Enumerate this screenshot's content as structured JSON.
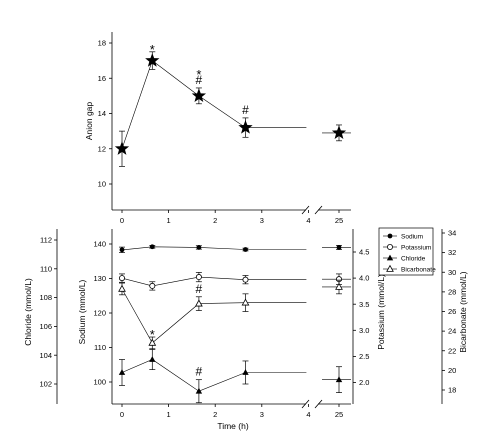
{
  "chart_data": [
    {
      "type": "line",
      "title": "",
      "xlabel": "",
      "ylabel": "Anion gap",
      "x_break_between": [
        4,
        25
      ],
      "xticks": [
        "0",
        "1",
        "2",
        "3",
        "4",
        "25"
      ],
      "yticks": [
        "10",
        "12",
        "14",
        "16",
        "18"
      ],
      "ylim": [
        9,
        19
      ],
      "grid": false,
      "series": [
        {
          "marker": "star",
          "x": [
            0,
            0.65,
            1.65,
            2.65,
            25
          ],
          "values": [
            12.0,
            17.0,
            15.0,
            13.2,
            12.9
          ],
          "errors": [
            1.0,
            0.5,
            0.45,
            0.55,
            0.45
          ],
          "annotations": [
            "",
            "*",
            "*\n#",
            "#",
            ""
          ]
        }
      ]
    },
    {
      "type": "line",
      "title": "",
      "xlabel": "Time (h)",
      "x_break_between": [
        4,
        25
      ],
      "xticks": [
        "0",
        "1",
        "2",
        "3",
        "4",
        "25"
      ],
      "grid": false,
      "legend": "top-right",
      "axes": {
        "chloride": {
          "label": "Chloride (mmol/L)",
          "ticks": [
            "102",
            "104",
            "106",
            "108",
            "110",
            "112"
          ],
          "range": [
            100.5,
            112.5
          ]
        },
        "sodium": {
          "label": "Sodium (mmol/L)",
          "ticks": [
            "100",
            "110",
            "120",
            "130",
            "140"
          ],
          "range": [
            96,
            144
          ]
        },
        "potassium": {
          "label": "Potassium (mmol/L)",
          "ticks": [
            "2.0",
            "2.5",
            "3.0",
            "3.5",
            "4.0",
            "4.5"
          ],
          "range": [
            1.75,
            4.65
          ]
        },
        "bicarbonate": {
          "label": "Bicarbonate (mmol/L)",
          "ticks": [
            "18",
            "20",
            "22",
            "24",
            "26",
            "28",
            "30",
            "32",
            "34"
          ],
          "range": [
            17,
            35
          ]
        }
      },
      "series": [
        {
          "name": "Sodium",
          "marker": "filled-circle",
          "axis": "sodium",
          "x": [
            0,
            0.65,
            1.65,
            2.65,
            25
          ],
          "values": [
            138.3,
            139.2,
            139.0,
            138.4,
            139.0
          ],
          "errors": [
            0.8,
            0.4,
            0.5,
            0.4,
            0.6
          ],
          "annotations": [
            "",
            "",
            "",
            "",
            ""
          ]
        },
        {
          "name": "Potassium",
          "marker": "open-circle",
          "axis": "potassium",
          "x": [
            0,
            0.65,
            1.65,
            2.65,
            25
          ],
          "values": [
            4.0,
            3.85,
            4.02,
            3.97,
            3.98
          ],
          "errors": [
            0.08,
            0.08,
            0.09,
            0.08,
            0.1
          ],
          "annotations": [
            "",
            "",
            "",
            "",
            ""
          ]
        },
        {
          "name": "Chloride",
          "marker": "filled-triangle",
          "axis": "chloride",
          "x": [
            0,
            0.65,
            1.65,
            2.65,
            25
          ],
          "values": [
            102.8,
            103.7,
            101.5,
            102.8,
            102.3
          ],
          "errors": [
            0.9,
            0.7,
            0.8,
            0.8,
            0.9
          ],
          "annotations": [
            "",
            "",
            "#",
            "",
            ""
          ]
        },
        {
          "name": "Bicarbonate",
          "marker": "open-triangle",
          "axis": "bicarbonate",
          "x": [
            0,
            0.65,
            1.65,
            2.65,
            25
          ],
          "values": [
            28.3,
            22.8,
            26.8,
            26.9,
            28.5
          ],
          "errors": [
            0.6,
            0.6,
            0.7,
            0.9,
            0.7
          ],
          "annotations": [
            "",
            "*",
            "#",
            "",
            ""
          ]
        }
      ]
    }
  ]
}
